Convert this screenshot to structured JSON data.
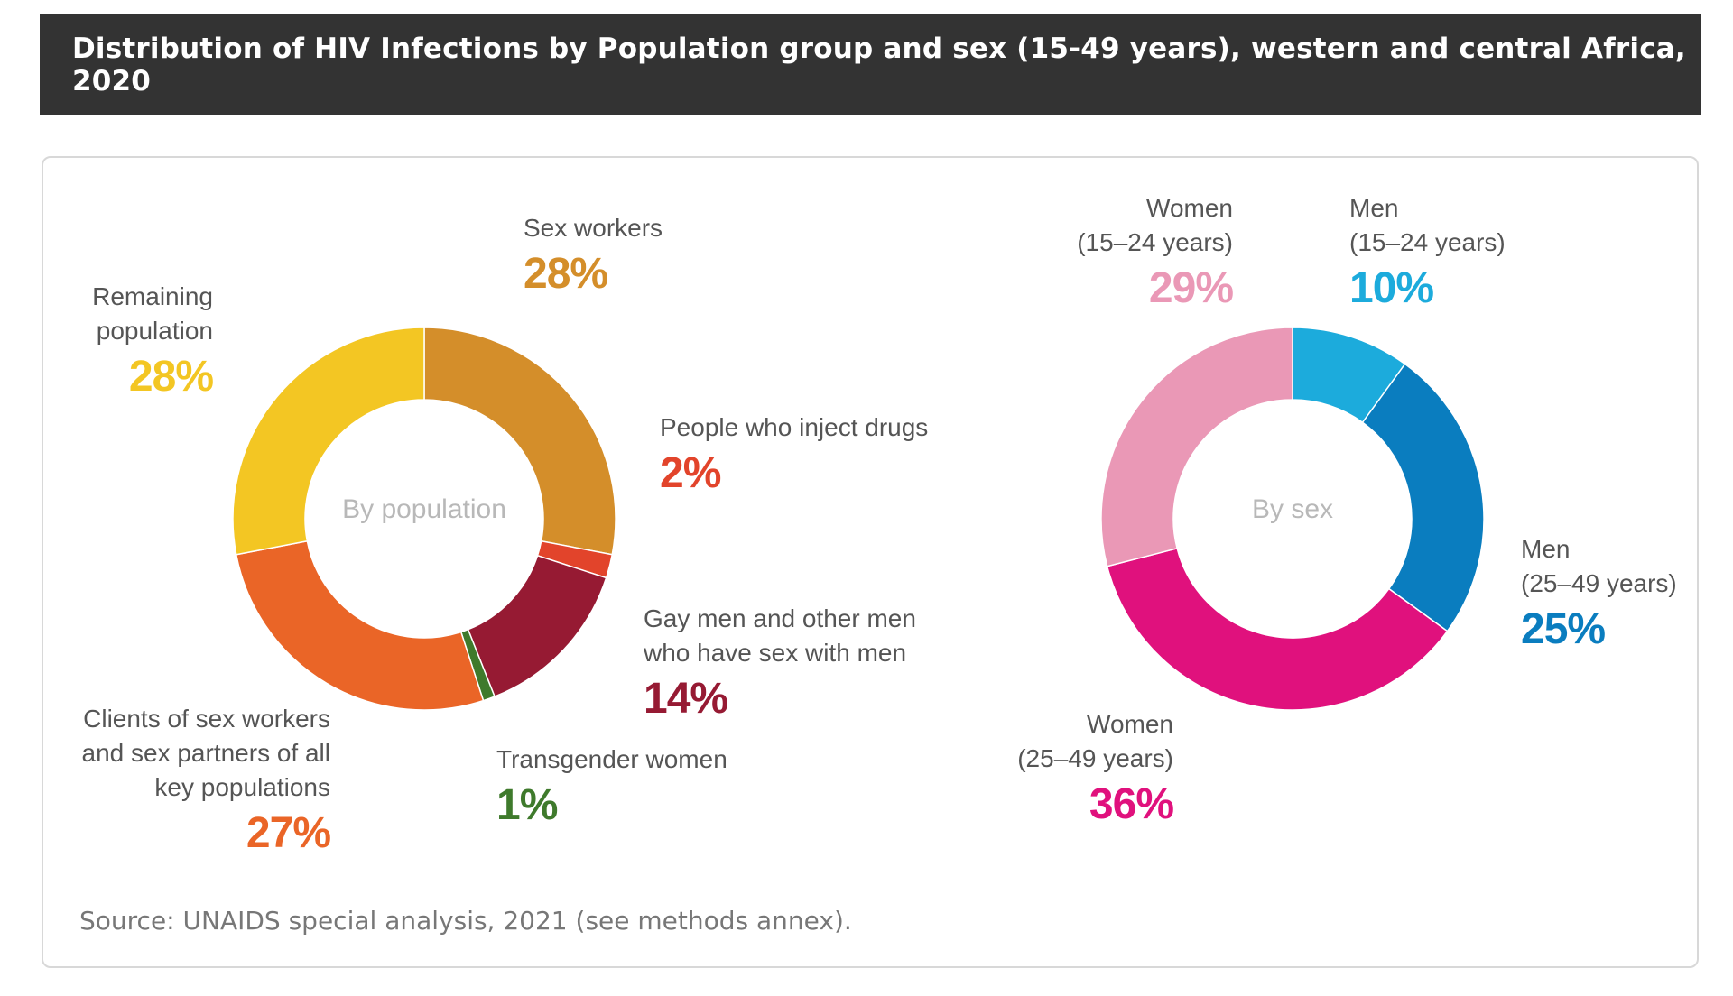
{
  "title": "Distribution of HIV Infections by Population group and sex (15-49 years), western and central Africa, 2020",
  "source": "Source: UNAIDS special analysis, 2021 (see methods annex).",
  "chart_data": [
    {
      "type": "pie",
      "center_label": "By population",
      "slices": [
        {
          "name": "Sex workers",
          "label_lines": "Sex workers",
          "value": 28,
          "value_label": "28%",
          "color": "#D48E2A"
        },
        {
          "name": "People who inject drugs",
          "label_lines": "People who inject drugs",
          "value": 2,
          "value_label": "2%",
          "color": "#E2442B"
        },
        {
          "name": "Gay men and other men who have sex with men",
          "label_lines": "Gay men and other men\nwho have sex with men",
          "value": 14,
          "value_label": "14%",
          "color": "#961A33"
        },
        {
          "name": "Transgender women",
          "label_lines": "Transgender women",
          "value": 1,
          "value_label": "1%",
          "color": "#3F7A2C"
        },
        {
          "name": "Clients of sex workers and sex partners of all key populations",
          "label_lines": "Clients of sex workers\nand sex partners of all\nkey populations",
          "value": 27,
          "value_label": "27%",
          "color": "#EA6527"
        },
        {
          "name": "Remaining population",
          "label_lines": "Remaining\npopulation",
          "value": 28,
          "value_label": "28%",
          "color": "#F3C623"
        }
      ]
    },
    {
      "type": "pie",
      "center_label": "By sex",
      "slices": [
        {
          "name": "Men (15–24 years)",
          "label_lines": "Men\n(15–24 years)",
          "value": 10,
          "value_label": "10%",
          "color": "#1CABDC"
        },
        {
          "name": "Men (25–49 years)",
          "label_lines": "Men\n(25–49 years)",
          "value": 25,
          "value_label": "25%",
          "color": "#0A7DBF"
        },
        {
          "name": "Women (25–49 years)",
          "label_lines": "Women\n(25–49 years)",
          "value": 36,
          "value_label": "36%",
          "color": "#E0117D"
        },
        {
          "name": "Women (15–24 years)",
          "label_lines": "Women\n(15–24 years)",
          "value": 29,
          "value_label": "29%",
          "color": "#EA98B6"
        }
      ]
    }
  ]
}
